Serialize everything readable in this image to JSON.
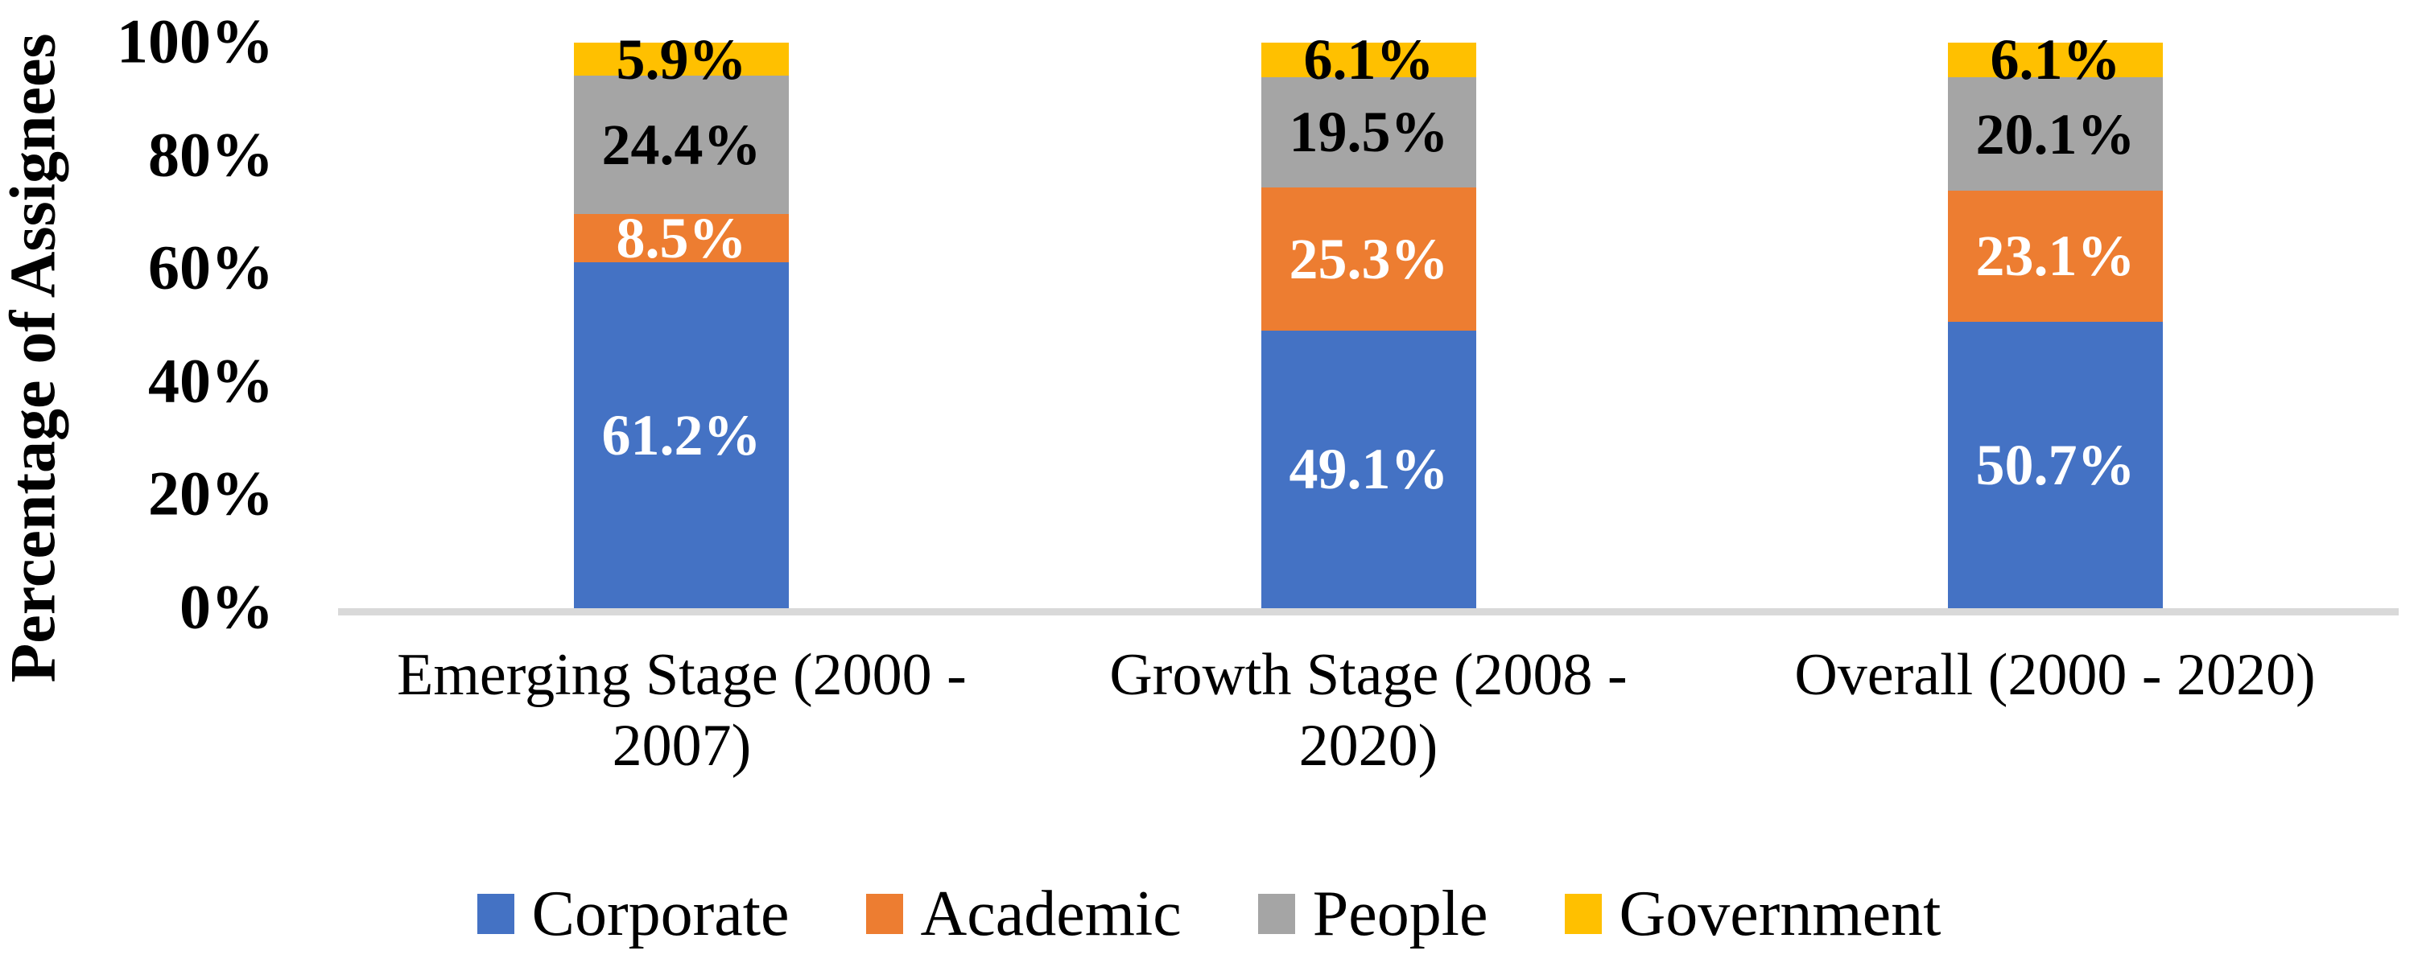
{
  "chart_data": {
    "type": "bar",
    "variant": "stacked-100-percent-column",
    "title": "",
    "xlabel": "",
    "ylabel": "Percentage of Assignees",
    "ylim": [
      0,
      100
    ],
    "grid": false,
    "background": "#FFFFFF",
    "axis_line_color": "#D9D9D9",
    "yticks": [
      {
        "value": 0,
        "label": "0%"
      },
      {
        "value": 20,
        "label": "20%"
      },
      {
        "value": 40,
        "label": "40%"
      },
      {
        "value": 60,
        "label": "60%"
      },
      {
        "value": 80,
        "label": "80%"
      },
      {
        "value": 100,
        "label": "100%"
      }
    ],
    "categories": [
      "Emerging Stage (2000 - 2007)",
      "Growth Stage (2008 - 2020)",
      "Overall (2000 - 2020)"
    ],
    "series": [
      {
        "name": "Corporate",
        "color": "#4472C4",
        "label_color": "#FFFFFF",
        "values": [
          61.2,
          49.1,
          50.7
        ],
        "labels": [
          "61.2%",
          "49.1%",
          "50.7%"
        ]
      },
      {
        "name": "Academic",
        "color": "#ED7D31",
        "label_color": "#FFFFFF",
        "values": [
          8.5,
          25.3,
          23.1
        ],
        "labels": [
          "8.5%",
          "25.3%",
          "23.1%"
        ]
      },
      {
        "name": "People",
        "color": "#A5A5A5",
        "label_color": "#000000",
        "values": [
          24.4,
          19.5,
          20.1
        ],
        "labels": [
          "24.4%",
          "19.5%",
          "20.1%"
        ]
      },
      {
        "name": "Government",
        "color": "#FFC000",
        "label_color": "#000000",
        "values": [
          5.9,
          6.1,
          6.1
        ],
        "labels": [
          "5.9%",
          "6.1%",
          "6.1%"
        ]
      }
    ],
    "legend": {
      "position": "bottom",
      "entries": [
        "Corporate",
        "Academic",
        "People",
        "Government"
      ]
    }
  }
}
